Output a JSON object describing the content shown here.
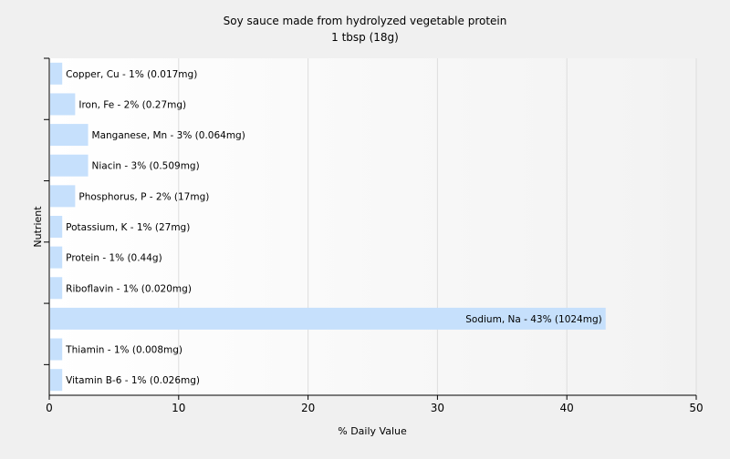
{
  "chart_data": {
    "type": "bar",
    "orientation": "horizontal",
    "title": "Soy sauce made from hydrolyzed vegetable protein",
    "subtitle": "1 tbsp (18g)",
    "xlabel": "% Daily Value",
    "ylabel": "Nutrient",
    "xlim": [
      0,
      50
    ],
    "xticks": [
      0,
      10,
      20,
      30,
      40,
      50
    ],
    "grid": true,
    "legend": "none",
    "bar_color": "#c6e0fc",
    "categories": [
      "Copper, Cu",
      "Iron, Fe",
      "Manganese, Mn",
      "Niacin",
      "Phosphorus, P",
      "Potassium, K",
      "Protein",
      "Riboflavin",
      "Sodium, Na",
      "Thiamin",
      "Vitamin B-6"
    ],
    "values": [
      1,
      2,
      3,
      3,
      2,
      1,
      1,
      1,
      43,
      1,
      1
    ],
    "data_labels": [
      "Copper, Cu - 1% (0.017mg)",
      "Iron, Fe - 2% (0.27mg)",
      "Manganese, Mn - 3% (0.064mg)",
      "Niacin - 3% (0.509mg)",
      "Phosphorus, P - 2% (17mg)",
      "Potassium, K - 1% (27mg)",
      "Protein - 1% (0.44g)",
      "Riboflavin - 1% (0.020mg)",
      "Sodium, Na - 43% (1024mg)",
      "Thiamin - 1% (0.008mg)",
      "Vitamin B-6 - 1% (0.026mg)"
    ]
  }
}
